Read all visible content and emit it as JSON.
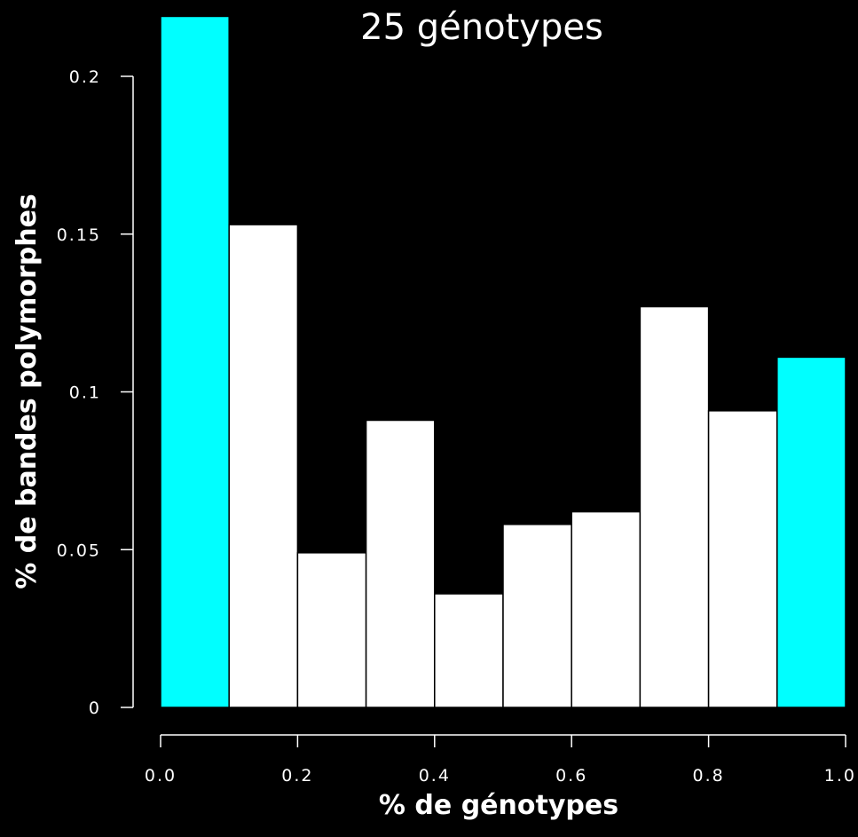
{
  "chart_data": {
    "type": "bar",
    "title": "25 génotypes",
    "xlabel": "% de génotypes",
    "ylabel": "% de bandes polymorphes",
    "bins": [
      {
        "x0": 0.0,
        "x1": 0.1,
        "value": 0.219,
        "color": "#00ffff"
      },
      {
        "x0": 0.1,
        "x1": 0.2,
        "value": 0.153,
        "color": "#ffffff"
      },
      {
        "x0": 0.2,
        "x1": 0.3,
        "value": 0.049,
        "color": "#ffffff"
      },
      {
        "x0": 0.3,
        "x1": 0.4,
        "value": 0.091,
        "color": "#ffffff"
      },
      {
        "x0": 0.4,
        "x1": 0.5,
        "value": 0.036,
        "color": "#ffffff"
      },
      {
        "x0": 0.5,
        "x1": 0.6,
        "value": 0.058,
        "color": "#ffffff"
      },
      {
        "x0": 0.6,
        "x1": 0.7,
        "value": 0.062,
        "color": "#ffffff"
      },
      {
        "x0": 0.7,
        "x1": 0.8,
        "value": 0.127,
        "color": "#ffffff"
      },
      {
        "x0": 0.8,
        "x1": 0.9,
        "value": 0.094,
        "color": "#ffffff"
      },
      {
        "x0": 0.9,
        "x1": 1.0,
        "value": 0.111,
        "color": "#00ffff"
      }
    ],
    "xlim": [
      0.0,
      1.0
    ],
    "ylim": [
      0,
      0.22
    ],
    "xticks": [
      0.0,
      0.2,
      0.4,
      0.6,
      0.8,
      1.0
    ],
    "xtick_labels": [
      "0.0",
      "0.2",
      "0.4",
      "0.6",
      "0.8",
      "1.0"
    ],
    "yticks": [
      0,
      0.05,
      0.1,
      0.15,
      0.2
    ],
    "ytick_labels": [
      "0",
      "0.05",
      "0.1",
      "0.15",
      "0.2"
    ],
    "grid": false,
    "colors": {
      "background": "#000000",
      "foreground": "#ffffff",
      "highlight": "#00ffff",
      "bar_border": "#000000"
    }
  }
}
